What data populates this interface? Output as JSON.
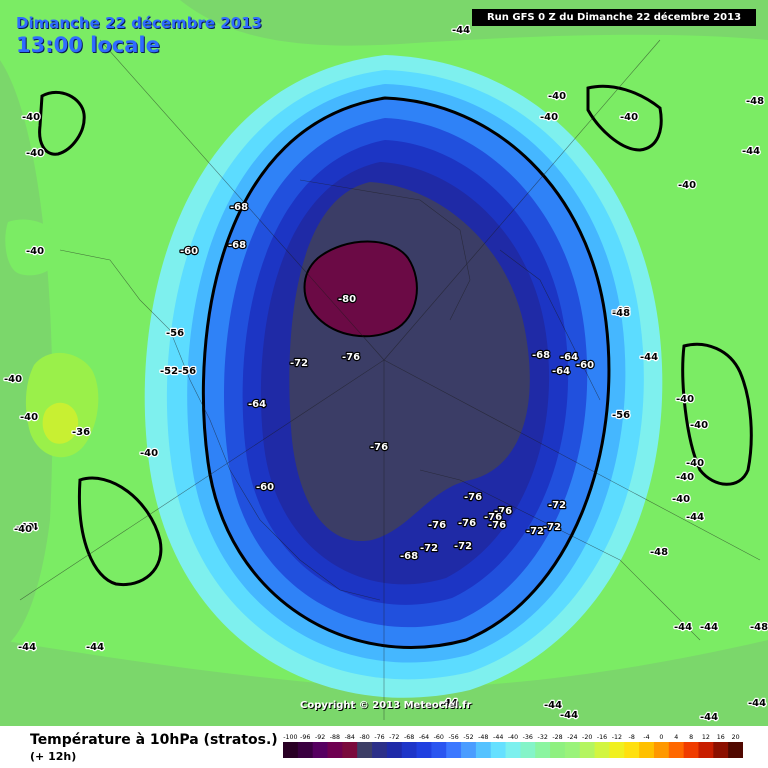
{
  "header": {
    "date": "Dimanche 22 décembre 2013",
    "local_time": "13:00 locale",
    "run": "Run GFS 0 Z du Dimanche 22 décembre 2013"
  },
  "copyright": "Copyright © 2013 Meteociel.fr",
  "footer": {
    "title": "Température à 10hPa (stratos.)",
    "lead": "(+ 12h)"
  },
  "legend": {
    "ticks": [
      "-100",
      "-96",
      "-92",
      "-88",
      "-84",
      "-80",
      "-76",
      "-72",
      "-68",
      "-64",
      "-60",
      "-56",
      "-52",
      "-48",
      "-44",
      "-40",
      "-36",
      "-32",
      "-28",
      "-24",
      "-20",
      "-16",
      "-12",
      "-8",
      "-4",
      "0",
      "4",
      "8",
      "12",
      "16",
      "20"
    ],
    "colors": [
      "#2a0025",
      "#3a0040",
      "#560060",
      "#6e0050",
      "#7a0a3c",
      "#3d3e66",
      "#2c2f88",
      "#1f2aa8",
      "#1e35c8",
      "#2040e0",
      "#2a55f0",
      "#3c78ff",
      "#4a9cff",
      "#55c2ff",
      "#66e0ff",
      "#7cf0ee",
      "#84f4c8",
      "#8af5a0",
      "#8ff080",
      "#9af37a",
      "#b4f560",
      "#d2f540",
      "#f0f020",
      "#ffe010",
      "#ffc000",
      "#ff9800",
      "#ff6800",
      "#f03c00",
      "#c81e00",
      "#8c1000",
      "#500800"
    ]
  },
  "map": {
    "colors": {
      "m40": "#7bec64",
      "m44": "#7bd76b",
      "m48": "#7ef0ee",
      "m52": "#5cdcff",
      "m56": "#45b7ff",
      "m60": "#2f82f7",
      "m64": "#2150dd",
      "m68": "#1c35c4",
      "m72": "#1f2aa6",
      "m76": "#3b3d66",
      "m80": "#6b0a45",
      "m36": "#9af04a",
      "m32": "#c8f032"
    },
    "labels": [
      {
        "t": "-44"
      },
      {
        "t": "-40"
      },
      {
        "t": "-40"
      },
      {
        "t": "-40"
      },
      {
        "t": "-40"
      },
      {
        "t": "-40"
      },
      {
        "t": "-44"
      },
      {
        "t": "-40"
      },
      {
        "t": "-36"
      },
      {
        "t": "-40"
      },
      {
        "t": "-40"
      },
      {
        "t": "-44"
      },
      {
        "t": "-44"
      },
      {
        "t": "-40"
      },
      {
        "t": "-40"
      },
      {
        "t": "-48"
      },
      {
        "t": "-44"
      },
      {
        "t": "-40"
      },
      {
        "t": "-48"
      },
      {
        "t": "-44"
      },
      {
        "t": "-40"
      },
      {
        "t": "-40"
      },
      {
        "t": "-40"
      },
      {
        "t": "-40"
      },
      {
        "t": "-40"
      },
      {
        "t": "-40"
      },
      {
        "t": "-44"
      },
      {
        "t": "-48"
      },
      {
        "t": "-44"
      },
      {
        "t": "-44"
      },
      {
        "t": "-44"
      },
      {
        "t": "-44"
      },
      {
        "t": "-44"
      },
      {
        "t": "-48"
      },
      {
        "t": "-44"
      },
      {
        "t": "-44"
      },
      {
        "t": "-52"
      },
      {
        "t": "-56"
      },
      {
        "t": "-56"
      },
      {
        "t": "-60"
      },
      {
        "t": "-60"
      },
      {
        "t": "-64"
      },
      {
        "t": "-68"
      },
      {
        "t": "-68"
      },
      {
        "t": "-72"
      },
      {
        "t": "-76"
      },
      {
        "t": "-76"
      },
      {
        "t": "-80"
      },
      {
        "t": "-68"
      },
      {
        "t": "-64"
      },
      {
        "t": "-64"
      },
      {
        "t": "-60"
      },
      {
        "t": "-56"
      },
      {
        "t": "-76"
      },
      {
        "t": "-76"
      },
      {
        "t": "-76"
      },
      {
        "t": "-76"
      },
      {
        "t": "-76"
      },
      {
        "t": "-76"
      },
      {
        "t": "-72"
      },
      {
        "t": "-72"
      },
      {
        "t": "-72"
      },
      {
        "t": "-72"
      },
      {
        "t": "-72"
      },
      {
        "t": "-68"
      },
      {
        "t": "-48"
      }
    ]
  }
}
